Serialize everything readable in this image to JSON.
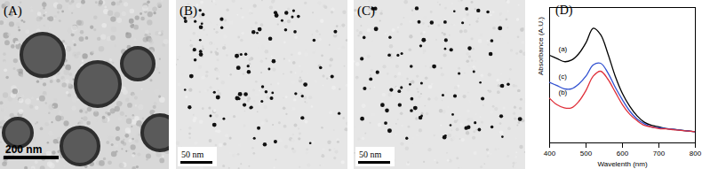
{
  "panels": [
    {
      "label": "(A)",
      "scale_bar": "200 nm"
    },
    {
      "label": "(B)",
      "scale_bar": "50 nm"
    },
    {
      "label": "(C)",
      "scale_bar": "50 nm"
    }
  ],
  "chart_data": {
    "type": "line",
    "title": "(D)",
    "x_label": "Wavelenth (nm)",
    "y_label": "Absorbance (A.U.)",
    "x": [
      400,
      420,
      440,
      460,
      480,
      500,
      520,
      540,
      560,
      580,
      600,
      620,
      640,
      660,
      680,
      700,
      720,
      740,
      760,
      780,
      800
    ],
    "xlim": [
      400,
      800
    ],
    "xticks": [
      400,
      500,
      600,
      700,
      800
    ],
    "ylim": [
      0,
      0.85
    ],
    "tick_labels": "x",
    "series": [
      {
        "name": "(a)",
        "color": "#000000",
        "values": [
          0.55,
          0.53,
          0.51,
          0.52,
          0.56,
          0.63,
          0.72,
          0.68,
          0.56,
          0.42,
          0.31,
          0.23,
          0.17,
          0.13,
          0.11,
          0.1,
          0.09,
          0.085,
          0.08,
          0.075,
          0.07
        ]
      },
      {
        "name": "(c)",
        "color": "#3050d0",
        "values": [
          0.38,
          0.36,
          0.34,
          0.34,
          0.37,
          0.42,
          0.49,
          0.5,
          0.44,
          0.35,
          0.27,
          0.2,
          0.15,
          0.12,
          0.1,
          0.095,
          0.09,
          0.085,
          0.08,
          0.075,
          0.07
        ]
      },
      {
        "name": "(b)",
        "color": "#e0303a",
        "values": [
          0.28,
          0.24,
          0.22,
          0.22,
          0.26,
          0.33,
          0.42,
          0.45,
          0.4,
          0.32,
          0.24,
          0.18,
          0.14,
          0.11,
          0.1,
          0.09,
          0.088,
          0.083,
          0.078,
          0.074,
          0.07
        ]
      }
    ]
  }
}
